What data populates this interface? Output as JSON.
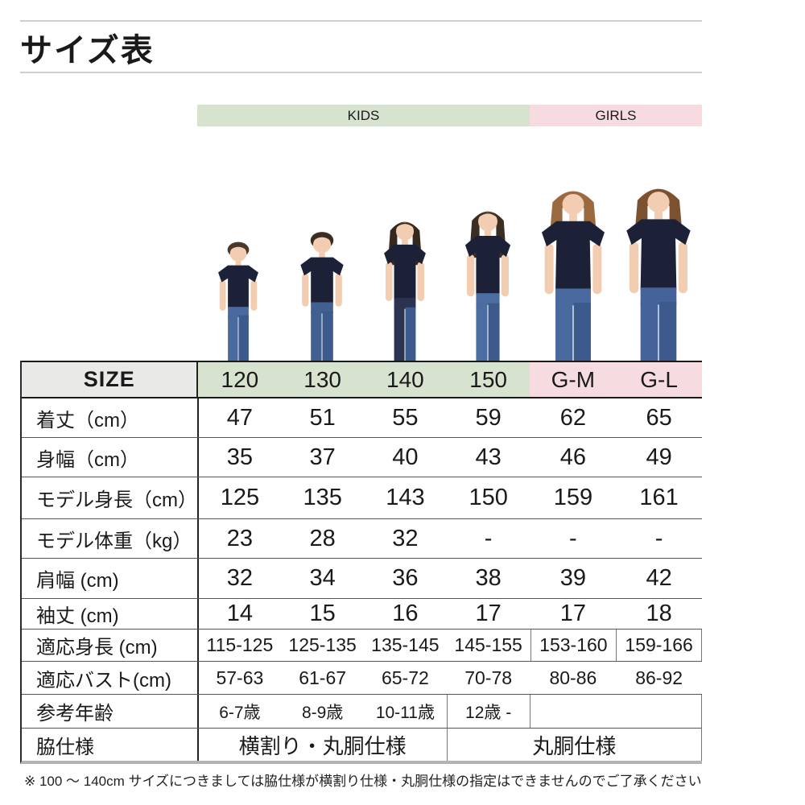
{
  "page": {
    "title": "サイズ表",
    "footnote": "※ 100 ～ 140cm サイズにつきましては脇仕様が横割り仕様・丸胴仕様の指定はできませんのでご了承ください"
  },
  "groups": {
    "kids": "KIDS",
    "girls": "GIRLS"
  },
  "colors": {
    "kids_bg": "#d7e3ce",
    "girls_bg": "#f6dbe1",
    "size_label_bg": "#e9e9e7",
    "shirt_navy": "#1c2138",
    "jeans_blue": "#49699f"
  },
  "models": [
    {
      "size": "120",
      "group": "KIDS",
      "type": "boy"
    },
    {
      "size": "130",
      "group": "KIDS",
      "type": "boy"
    },
    {
      "size": "140",
      "group": "KIDS",
      "type": "girl"
    },
    {
      "size": "150",
      "group": "KIDS",
      "type": "girl"
    },
    {
      "size": "G-M",
      "group": "GIRLS",
      "type": "woman"
    },
    {
      "size": "G-L",
      "group": "GIRLS",
      "type": "woman"
    }
  ],
  "table": {
    "size_label": "SIZE",
    "columns": [
      "120",
      "130",
      "140",
      "150",
      "G-M",
      "G-L"
    ],
    "rows": [
      {
        "label": "着丈（cm）",
        "values": [
          "47",
          "51",
          "55",
          "59",
          "62",
          "65"
        ]
      },
      {
        "label": "身幅（cm）",
        "values": [
          "35",
          "37",
          "40",
          "43",
          "46",
          "49"
        ]
      },
      {
        "label": "モデル身長（cm）",
        "values": [
          "125",
          "135",
          "143",
          "150",
          "159",
          "161"
        ]
      },
      {
        "label": "モデル体重（kg）",
        "values": [
          "23",
          "28",
          "32",
          "-",
          "-",
          "-"
        ]
      },
      {
        "label": "肩幅 (cm)",
        "values": [
          "32",
          "34",
          "36",
          "38",
          "39",
          "42"
        ]
      },
      {
        "label": "袖丈 (cm)",
        "values": [
          "14",
          "15",
          "16",
          "17",
          "17",
          "18"
        ]
      },
      {
        "label": "適応身長 (cm)",
        "values": [
          "115-125",
          "125-135",
          "135-145",
          "145-155",
          "153-160",
          "159-166"
        ]
      },
      {
        "label": "適応バスト(cm)",
        "values": [
          "57-63",
          "61-67",
          "65-72",
          "70-78",
          "80-86",
          "86-92"
        ]
      },
      {
        "label": "参考年齢",
        "values": [
          "6-7歳",
          "8-9歳",
          "10-11歳",
          "12歳 -",
          "",
          ""
        ]
      },
      {
        "label": "脇仕様",
        "values": [
          "横割り・丸胴仕様",
          "丸胴仕様"
        ]
      }
    ]
  }
}
